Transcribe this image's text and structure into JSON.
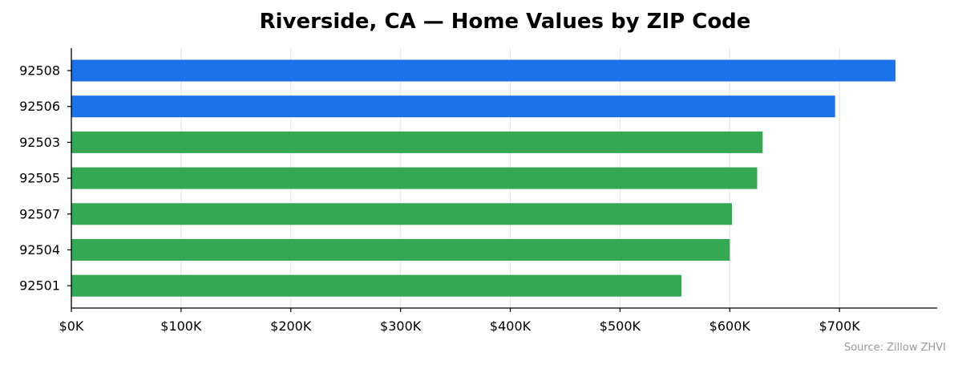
{
  "chart_data": {
    "type": "bar",
    "orientation": "horizontal",
    "title": "Riverside, CA — Home Values by ZIP Code",
    "xlabel": "",
    "ylabel": "",
    "categories": [
      "92508",
      "92506",
      "92503",
      "92505",
      "92507",
      "92504",
      "92501"
    ],
    "values": [
      751000,
      696000,
      630000,
      625000,
      602000,
      600000,
      556000
    ],
    "colors": [
      "#1a73e8",
      "#1a73e8",
      "#34a853",
      "#34a853",
      "#34a853",
      "#34a853",
      "#34a853"
    ],
    "xlim": [
      0,
      789000
    ],
    "xticks": [
      0,
      100000,
      200000,
      300000,
      400000,
      500000,
      600000,
      700000
    ],
    "xtick_labels": [
      "$0K",
      "$100K",
      "$200K",
      "$300K",
      "$400K",
      "$500K",
      "$600K",
      "$700K"
    ],
    "grid": "vertical",
    "grid_color": "#e6e6e6",
    "axis_color": "#000000",
    "source": "Source: Zillow ZHVI"
  }
}
